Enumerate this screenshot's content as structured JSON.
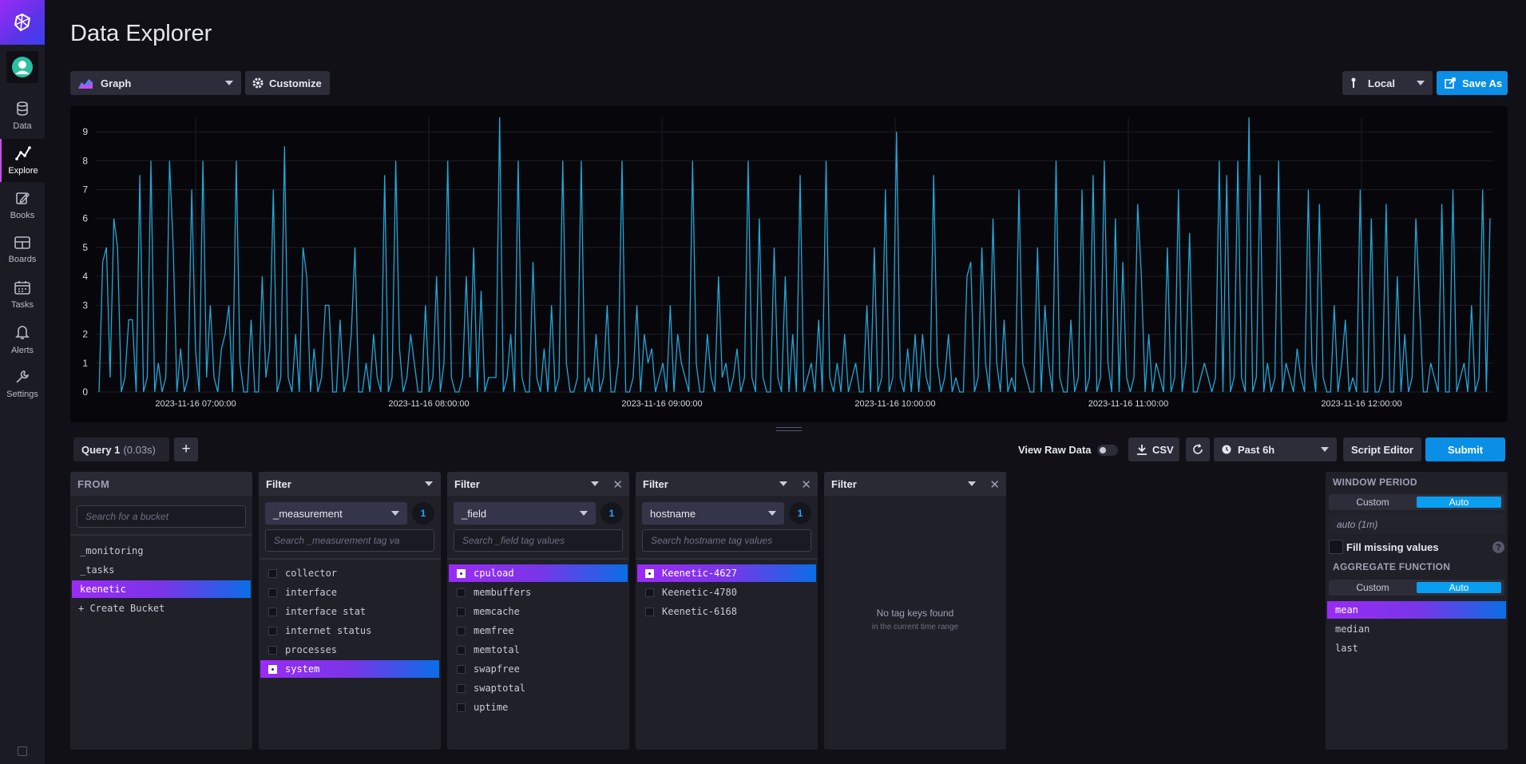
{
  "nav": {
    "items": [
      {
        "label": "Data",
        "icon": "database-icon"
      },
      {
        "label": "Explore",
        "icon": "graph-icon",
        "active": true
      },
      {
        "label": "Books",
        "icon": "notebook-icon"
      },
      {
        "label": "Boards",
        "icon": "dashboard-icon"
      },
      {
        "label": "Tasks",
        "icon": "calendar-icon"
      },
      {
        "label": "Alerts",
        "icon": "bell-icon"
      },
      {
        "label": "Settings",
        "icon": "wrench-icon"
      }
    ]
  },
  "page": {
    "title": "Data Explorer"
  },
  "toolbar": {
    "viz_type": "Graph",
    "customize_label": "Customize",
    "timezone": "Local",
    "save_as_label": "Save As"
  },
  "chart_data": {
    "type": "line",
    "x_tick_labels": [
      "2023-11-16 07:00:00",
      "2023-11-16 08:00:00",
      "2023-11-16 09:00:00",
      "2023-11-16 10:00:00",
      "2023-11-16 11:00:00",
      "2023-11-16 12:00:00"
    ],
    "y_ticks": [
      0,
      1,
      2,
      3,
      4,
      5,
      6,
      7,
      8,
      9
    ],
    "ylim": [
      0,
      9.5
    ],
    "series": [
      {
        "color": "#22a7d9",
        "values": [
          0,
          4.5,
          5,
          0.5,
          6,
          5,
          0,
          0.5,
          2.5,
          2.5,
          0,
          7.5,
          0,
          0.5,
          8,
          0,
          1,
          0,
          0.5,
          8,
          5,
          0,
          1.5,
          0,
          0.5,
          7,
          1.5,
          0,
          8,
          0.5,
          3,
          0.5,
          0,
          1.5,
          2,
          3,
          0,
          8,
          1,
          0,
          0,
          2.5,
          0,
          0,
          4,
          0.5,
          1.5,
          7,
          0,
          0.5,
          8.5,
          0.5,
          0,
          2,
          0,
          5,
          4,
          0,
          1.5,
          0,
          0.5,
          3,
          3,
          0,
          0,
          2.5,
          0,
          0.5,
          2,
          5,
          0,
          0,
          1,
          0,
          2,
          0.5,
          0,
          7.5,
          0,
          0.5,
          8,
          1.5,
          0,
          0.5,
          2,
          1,
          0,
          0,
          3,
          0,
          0.5,
          4,
          0,
          1,
          8,
          0.5,
          0,
          0,
          0.5,
          4,
          0.5,
          5,
          0,
          3.5,
          0,
          0.5,
          0.5,
          0.5,
          9.5,
          0,
          0.5,
          2,
          0,
          8,
          0.5,
          0,
          0,
          4.5,
          0.5,
          0,
          1.5,
          0,
          3,
          0,
          0.5,
          8,
          1,
          0,
          0,
          0.5,
          8,
          0,
          0.5,
          0,
          2,
          0,
          0.5,
          3,
          0,
          0,
          1,
          8,
          0,
          0,
          0.5,
          3,
          0,
          2,
          1,
          1.5,
          0,
          0.5,
          1,
          0,
          3,
          0,
          2,
          1,
          0.5,
          0,
          8,
          1,
          0,
          0,
          2,
          0.5,
          0,
          4,
          0.5,
          1,
          0,
          0.5,
          1.5,
          0,
          0.5,
          8,
          0.5,
          0,
          6,
          0.5,
          0,
          0,
          5,
          0.5,
          0,
          4,
          0,
          2,
          0,
          7.5,
          0,
          0.5,
          1,
          0,
          2.5,
          0,
          8,
          0.5,
          0,
          1,
          0,
          2,
          0,
          0.5,
          1,
          0,
          0,
          3,
          0,
          5,
          0,
          0.5,
          7,
          0,
          0.5,
          9,
          0.5,
          0,
          1.5,
          0,
          2,
          0,
          2,
          0.5,
          0,
          7.5,
          1,
          0,
          0.5,
          2,
          0,
          0.5,
          0,
          0,
          4,
          4.5,
          0,
          0.5,
          5,
          1,
          0,
          6,
          1,
          0,
          2.5,
          0,
          0.5,
          0,
          7,
          1,
          0.5,
          0,
          0,
          5,
          0,
          3,
          1,
          0,
          8,
          0.5,
          0,
          0,
          2.5,
          0,
          0.5,
          7,
          0,
          0.5,
          7.5,
          0,
          0.5,
          8,
          1,
          0,
          6,
          0,
          4.5,
          0.5,
          0,
          0.5,
          6.5,
          4,
          0,
          2,
          0,
          1,
          0.5,
          0,
          5,
          0,
          0.5,
          7,
          0,
          1,
          5.5,
          0,
          0,
          0.5,
          1,
          0.5,
          0,
          0.5,
          8,
          0,
          7.5,
          0,
          0.5,
          8,
          0.5,
          0,
          9.5,
          0,
          0.5,
          7.5,
          0,
          1,
          0,
          0.5,
          8,
          0,
          1,
          0.5,
          0,
          1.5,
          0.5,
          0,
          7,
          1,
          0,
          6.5,
          0.5,
          0,
          0,
          3,
          0,
          1,
          2.5,
          0,
          0.5,
          0,
          7,
          0,
          0,
          6,
          0,
          0,
          0.5,
          6.5,
          0,
          0,
          4,
          0,
          2,
          0,
          0.5,
          6,
          3,
          0,
          0,
          1,
          0.5,
          0,
          6.5,
          0,
          0,
          7,
          0,
          0.5,
          1,
          0,
          3,
          0,
          0.5,
          7,
          0,
          6
        ]
      }
    ]
  },
  "query_bar": {
    "tab_label": "Query 1",
    "tab_time": "(0.03s)",
    "add_label": "+",
    "raw_data_label": "View Raw Data",
    "csv_label": "CSV",
    "time_range": "Past 6h",
    "script_editor_label": "Script Editor",
    "submit_label": "Submit"
  },
  "from": {
    "header": "FROM",
    "search_placeholder": "Search for a bucket",
    "buckets": [
      {
        "name": "_monitoring",
        "selected": false
      },
      {
        "name": "_tasks",
        "selected": false
      },
      {
        "name": "keenetic",
        "selected": true
      }
    ],
    "create_label": "+ Create Bucket"
  },
  "filters": [
    {
      "header": "Filter",
      "key": "_measurement",
      "count": "1",
      "closable": false,
      "search_placeholder": "Search _measurement tag va",
      "values": [
        {
          "name": "collector",
          "selected": false
        },
        {
          "name": "interface",
          "selected": false
        },
        {
          "name": "interface stat",
          "selected": false
        },
        {
          "name": "internet status",
          "selected": false
        },
        {
          "name": "processes",
          "selected": false
        },
        {
          "name": "system",
          "selected": true
        }
      ]
    },
    {
      "header": "Filter",
      "key": "_field",
      "count": "1",
      "closable": true,
      "search_placeholder": "Search _field tag values",
      "values": [
        {
          "name": "cpuload",
          "selected": true
        },
        {
          "name": "membuffers",
          "selected": false
        },
        {
          "name": "memcache",
          "selected": false
        },
        {
          "name": "memfree",
          "selected": false
        },
        {
          "name": "memtotal",
          "selected": false
        },
        {
          "name": "swapfree",
          "selected": false
        },
        {
          "name": "swaptotal",
          "selected": false
        },
        {
          "name": "uptime",
          "selected": false
        }
      ]
    },
    {
      "header": "Filter",
      "key": "hostname",
      "count": "1",
      "closable": true,
      "search_placeholder": "Search hostname tag values",
      "values": [
        {
          "name": "Keenetic-4627",
          "selected": true
        },
        {
          "name": "Keenetic-4780",
          "selected": false
        },
        {
          "name": "Keenetic-6168",
          "selected": false
        }
      ]
    }
  ],
  "empty_filter": {
    "header": "Filter",
    "message": "No tag keys found",
    "sub_message": "in the current time range"
  },
  "window": {
    "header": "WINDOW PERIOD",
    "custom_label": "Custom",
    "auto_label": "Auto",
    "period_value": "auto (1m)",
    "fill_label": "Fill missing values",
    "help": "?",
    "agg_header": "AGGREGATE FUNCTION",
    "agg_custom_label": "Custom",
    "agg_auto_label": "Auto",
    "functions": [
      {
        "name": "mean",
        "selected": true
      },
      {
        "name": "median",
        "selected": false
      },
      {
        "name": "last",
        "selected": false
      }
    ]
  }
}
